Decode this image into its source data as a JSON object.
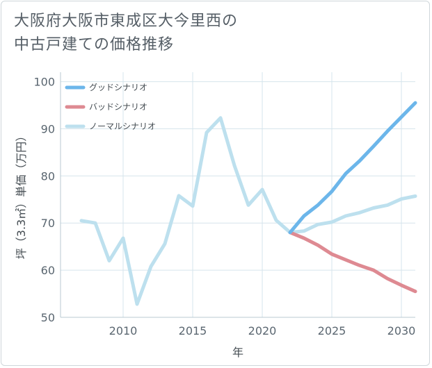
{
  "chart_data": {
    "type": "line",
    "title_lines": [
      "大阪府大阪市東成区大今里西の",
      "中古戸建ての価格推移"
    ],
    "xlabel": "年",
    "ylabel": "坪（3.3㎡）単価（万円）",
    "xlim": [
      2005.5,
      2031
    ],
    "ylim": [
      50,
      102
    ],
    "x_ticks": [
      2010,
      2015,
      2020,
      2025,
      2030
    ],
    "y_ticks": [
      50,
      60,
      70,
      80,
      90,
      100
    ],
    "grid": true,
    "legend_position": "top-left",
    "series": [
      {
        "name": "グッドシナリオ",
        "color": "#6cb6ea",
        "x": [
          2022,
          2023,
          2024,
          2025,
          2026,
          2027,
          2028,
          2029,
          2030,
          2031
        ],
        "values": [
          68.0,
          71.5,
          73.8,
          76.7,
          80.5,
          83.2,
          86.3,
          89.5,
          92.5,
          95.5
        ]
      },
      {
        "name": "バッドシナリオ",
        "color": "#de8a92",
        "x": [
          2022,
          2023,
          2024,
          2025,
          2026,
          2027,
          2028,
          2029,
          2030,
          2031
        ],
        "values": [
          68.0,
          66.8,
          65.3,
          63.4,
          62.2,
          61.0,
          60.0,
          58.2,
          56.8,
          55.5
        ]
      },
      {
        "name": "ノーマルシナリオ",
        "color": "#bde0ee",
        "x": [
          2007,
          2008,
          2009,
          2010,
          2011,
          2012,
          2013,
          2014,
          2015,
          2016,
          2017,
          2018,
          2019,
          2020,
          2021,
          2022,
          2023,
          2024,
          2025,
          2026,
          2027,
          2028,
          2029,
          2030,
          2031
        ],
        "values": [
          70.5,
          70.0,
          62.0,
          66.8,
          52.8,
          60.8,
          65.6,
          75.8,
          73.6,
          89.2,
          92.3,
          82.2,
          73.8,
          77.1,
          70.6,
          68.0,
          68.3,
          69.7,
          70.2,
          71.5,
          72.2,
          73.2,
          73.8,
          75.1,
          75.7
        ]
      }
    ]
  }
}
